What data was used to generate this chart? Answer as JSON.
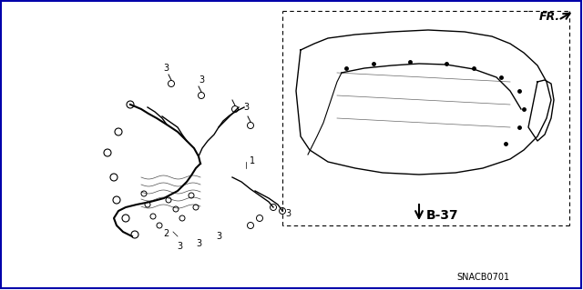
{
  "background_color": "#ffffff",
  "border_color": "#0000ff",
  "text_color": "#000000",
  "diagram_title": "SNACB0701",
  "fr_label": "FR.",
  "b37_label": "B-37",
  "part_numbers": [
    "1",
    "2",
    "3"
  ],
  "fig_width": 6.4,
  "fig_height": 3.19,
  "dpi": 100
}
